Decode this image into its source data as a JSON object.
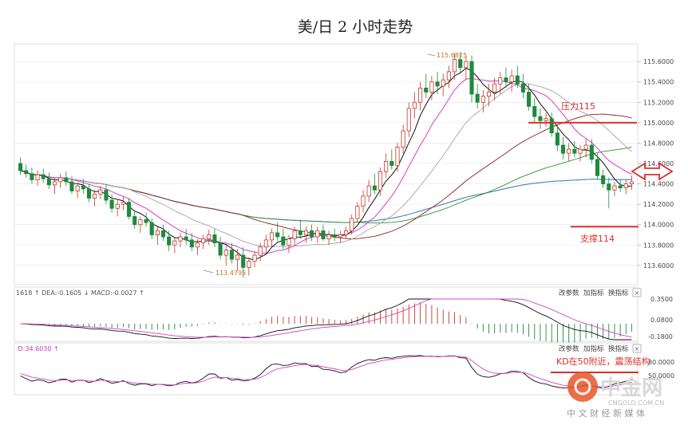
{
  "title": "美/日  2 小时走势",
  "colors": {
    "up": "#c0392b",
    "down": "#1e8a3c",
    "ma5": "#111111",
    "ma10": "#d640c8",
    "ma20": "#b0a0a0",
    "ma40": "#8a2020",
    "ma60": "#2f8f2f",
    "ma120": "#3388cc",
    "ma250": "#e0a020",
    "level": "#d9302b",
    "annot": "#d9302b",
    "grid": "#e4e4e4",
    "axis_text": "#444444"
  },
  "price_panel": {
    "annotations": [
      {
        "text": "压力115",
        "price": 115.0
      },
      {
        "text": "支撑114",
        "price": 113.98
      }
    ],
    "high_label": "115.6825",
    "low_label": "113.4795"
  },
  "macd_panel": {
    "info": "1618 ↑  DEA:-0.1605 ↓  MACD:-0.0027 ↑",
    "buttons": [
      "改参数",
      "加指标",
      "换指标"
    ],
    "close": "×",
    "ticks": [
      "0.3500",
      "0.0800",
      "-0.1800"
    ]
  },
  "kd_panel": {
    "info": "·D:34.6030 ↑",
    "buttons": [
      "改参数",
      "加指标",
      "换指标"
    ],
    "close": "×",
    "annotation": "KD在50附近，震荡结构",
    "ticks": [
      "80.0000",
      "50.0000"
    ]
  },
  "watermark": {
    "brand": "中金网",
    "url": "CNGOLD.COM.CN",
    "slogan": "中 文 财 经 新 媒 体"
  },
  "chart_data": {
    "type": "candlestick",
    "title": "美/日  2 小时走势",
    "ylim": [
      113.45,
      115.75
    ],
    "yticks": [
      "115.6000",
      "115.4000",
      "115.2000",
      "115.0000",
      "114.8000",
      "114.6000",
      "114.4000",
      "114.2000",
      "114.0000",
      "113.8000",
      "113.6000"
    ],
    "levels": [
      {
        "name": "压力115",
        "value": 115.0
      },
      {
        "name": "支撑114",
        "value": 113.98
      }
    ],
    "ohlc": [
      [
        114.6,
        114.66,
        114.49,
        114.53
      ],
      [
        114.53,
        114.59,
        114.46,
        114.5
      ],
      [
        114.5,
        114.56,
        114.4,
        114.44
      ],
      [
        114.44,
        114.53,
        114.38,
        114.49
      ],
      [
        114.49,
        114.55,
        114.41,
        114.45
      ],
      [
        114.45,
        114.51,
        114.35,
        114.39
      ],
      [
        114.39,
        114.46,
        114.3,
        114.42
      ],
      [
        114.42,
        114.5,
        114.36,
        114.46
      ],
      [
        114.46,
        114.52,
        114.38,
        114.42
      ],
      [
        114.42,
        114.48,
        114.3,
        114.33
      ],
      [
        114.33,
        114.41,
        114.26,
        114.38
      ],
      [
        114.38,
        114.45,
        114.3,
        114.35
      ],
      [
        114.35,
        114.4,
        114.22,
        114.26
      ],
      [
        114.26,
        114.34,
        114.18,
        114.3
      ],
      [
        114.3,
        114.38,
        114.25,
        114.34
      ],
      [
        114.34,
        114.39,
        114.2,
        114.24
      ],
      [
        114.24,
        114.3,
        114.12,
        114.16
      ],
      [
        114.16,
        114.24,
        114.08,
        114.2
      ],
      [
        114.2,
        114.28,
        114.14,
        114.22
      ],
      [
        114.22,
        114.26,
        114.05,
        114.08
      ],
      [
        114.08,
        114.14,
        113.96,
        114.0
      ],
      [
        114.0,
        114.08,
        113.92,
        114.05
      ],
      [
        114.05,
        114.12,
        113.98,
        114.02
      ],
      [
        114.02,
        114.06,
        113.86,
        113.9
      ],
      [
        113.9,
        113.98,
        113.8,
        113.94
      ],
      [
        113.94,
        114.0,
        113.84,
        113.88
      ],
      [
        113.88,
        113.94,
        113.74,
        113.8
      ],
      [
        113.8,
        113.88,
        113.72,
        113.84
      ],
      [
        113.84,
        113.92,
        113.78,
        113.88
      ],
      [
        113.88,
        113.96,
        113.8,
        113.85
      ],
      [
        113.85,
        113.92,
        113.74,
        113.78
      ],
      [
        113.78,
        113.86,
        113.7,
        113.82
      ],
      [
        113.82,
        113.9,
        113.76,
        113.86
      ],
      [
        113.86,
        113.95,
        113.8,
        113.9
      ],
      [
        113.9,
        113.96,
        113.78,
        113.82
      ],
      [
        113.82,
        113.88,
        113.66,
        113.7
      ],
      [
        113.7,
        113.8,
        113.6,
        113.75
      ],
      [
        113.75,
        113.82,
        113.62,
        113.66
      ],
      [
        113.66,
        113.76,
        113.55,
        113.7
      ],
      [
        113.7,
        113.78,
        113.48,
        113.58
      ],
      [
        113.58,
        113.68,
        113.5,
        113.64
      ],
      [
        113.64,
        113.74,
        113.58,
        113.7
      ],
      [
        113.7,
        113.82,
        113.64,
        113.78
      ],
      [
        113.78,
        113.9,
        113.72,
        113.85
      ],
      [
        113.85,
        113.96,
        113.78,
        113.92
      ],
      [
        113.92,
        114.02,
        113.84,
        113.88
      ],
      [
        113.88,
        113.96,
        113.76,
        113.8
      ],
      [
        113.8,
        113.9,
        113.72,
        113.86
      ],
      [
        113.86,
        113.98,
        113.8,
        113.94
      ],
      [
        113.94,
        114.05,
        113.86,
        113.9
      ],
      [
        113.9,
        113.98,
        113.82,
        113.94
      ],
      [
        113.94,
        114.0,
        113.84,
        113.88
      ],
      [
        113.88,
        113.98,
        113.82,
        113.94
      ],
      [
        113.94,
        114.0,
        113.84,
        113.86
      ],
      [
        113.86,
        113.94,
        113.8,
        113.9
      ],
      [
        113.9,
        113.96,
        113.84,
        113.88
      ],
      [
        113.88,
        113.94,
        113.82,
        113.9
      ],
      [
        113.9,
        113.98,
        113.86,
        113.94
      ],
      [
        113.94,
        114.1,
        113.9,
        114.06
      ],
      [
        114.06,
        114.22,
        114.02,
        114.18
      ],
      [
        114.18,
        114.34,
        114.12,
        114.28
      ],
      [
        114.28,
        114.44,
        114.22,
        114.38
      ],
      [
        114.38,
        114.5,
        114.3,
        114.34
      ],
      [
        114.34,
        114.56,
        114.28,
        114.52
      ],
      [
        114.52,
        114.7,
        114.46,
        114.62
      ],
      [
        114.62,
        114.74,
        114.54,
        114.58
      ],
      [
        114.58,
        114.8,
        114.52,
        114.76
      ],
      [
        114.76,
        114.98,
        114.7,
        114.92
      ],
      [
        114.92,
        115.2,
        114.86,
        115.14
      ],
      [
        115.14,
        115.3,
        115.04,
        115.2
      ],
      [
        115.2,
        115.4,
        115.12,
        115.34
      ],
      [
        115.34,
        115.48,
        115.24,
        115.3
      ],
      [
        115.3,
        115.46,
        115.22,
        115.4
      ],
      [
        115.4,
        115.5,
        115.28,
        115.36
      ],
      [
        115.36,
        115.48,
        115.26,
        115.42
      ],
      [
        115.42,
        115.56,
        115.34,
        115.5
      ],
      [
        115.5,
        115.68,
        115.42,
        115.62
      ],
      [
        115.62,
        115.69,
        115.48,
        115.54
      ],
      [
        115.54,
        115.66,
        115.42,
        115.6
      ],
      [
        115.6,
        115.66,
        115.2,
        115.28
      ],
      [
        115.28,
        115.38,
        115.14,
        115.2
      ],
      [
        115.2,
        115.32,
        115.1,
        115.26
      ],
      [
        115.26,
        115.38,
        115.16,
        115.3
      ],
      [
        115.3,
        115.44,
        115.22,
        115.38
      ],
      [
        115.38,
        115.5,
        115.28,
        115.44
      ],
      [
        115.44,
        115.54,
        115.34,
        115.4
      ],
      [
        115.4,
        115.52,
        115.3,
        115.46
      ],
      [
        115.46,
        115.56,
        115.34,
        115.38
      ],
      [
        115.38,
        115.48,
        115.24,
        115.3
      ],
      [
        115.3,
        115.38,
        115.12,
        115.16
      ],
      [
        115.16,
        115.24,
        115.0,
        115.06
      ],
      [
        115.06,
        115.14,
        114.94,
        115.02
      ],
      [
        115.02,
        115.1,
        114.96,
        115.04
      ],
      [
        115.04,
        115.1,
        114.86,
        114.9
      ],
      [
        114.9,
        114.98,
        114.72,
        114.78
      ],
      [
        114.78,
        114.86,
        114.64,
        114.7
      ],
      [
        114.7,
        114.8,
        114.62,
        114.74
      ],
      [
        114.74,
        114.82,
        114.66,
        114.7
      ],
      [
        114.7,
        114.78,
        114.62,
        114.74
      ],
      [
        114.74,
        114.84,
        114.66,
        114.78
      ],
      [
        114.78,
        114.84,
        114.6,
        114.64
      ],
      [
        114.64,
        114.7,
        114.44,
        114.48
      ],
      [
        114.48,
        114.54,
        114.36,
        114.4
      ],
      [
        114.4,
        114.46,
        114.16,
        114.34
      ],
      [
        114.34,
        114.42,
        114.28,
        114.38
      ],
      [
        114.38,
        114.44,
        114.32,
        114.36
      ],
      [
        114.36,
        114.44,
        114.3,
        114.4
      ],
      [
        114.4,
        114.48,
        114.34,
        114.42
      ]
    ]
  }
}
